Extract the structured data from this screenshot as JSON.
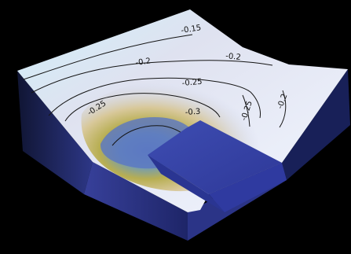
{
  "figure": {
    "type": "3d-contour-surface",
    "background": "#000000",
    "colormap": {
      "low": "#3f58b7",
      "mid": "#bfa94d",
      "high": "#dff0fb"
    },
    "contour_labels": [
      "-0.15",
      "-0.2",
      "-0.2",
      "-0.25",
      "-0.25",
      "-0.3",
      "-0.25",
      "-0.2"
    ]
  }
}
